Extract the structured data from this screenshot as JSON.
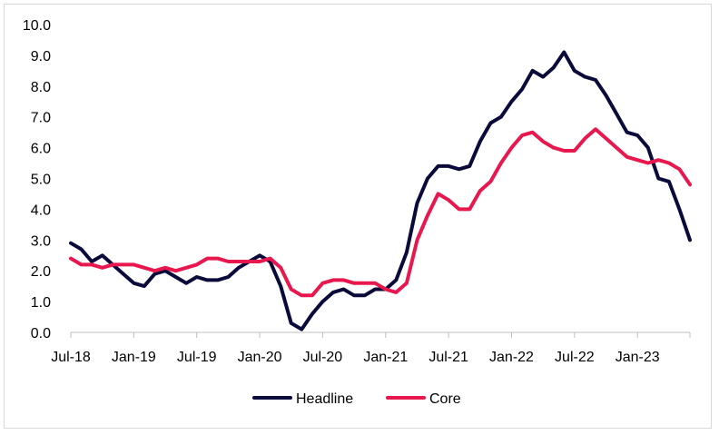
{
  "chart_data": {
    "type": "line",
    "title": "",
    "xlabel": "",
    "ylabel": "",
    "ylim": [
      0,
      10
    ],
    "yticks": [
      "0.0",
      "1.0",
      "2.0",
      "3.0",
      "4.0",
      "5.0",
      "6.0",
      "7.0",
      "8.0",
      "9.0",
      "10.0"
    ],
    "xtick_labels": [
      "Jul-18",
      "Jan-19",
      "Jul-19",
      "Jan-20",
      "Jul-20",
      "Jan-21",
      "Jul-21",
      "Jan-22",
      "Jul-22",
      "Jan-23"
    ],
    "x": [
      "Jul-18",
      "Aug-18",
      "Sep-18",
      "Oct-18",
      "Nov-18",
      "Dec-18",
      "Jan-19",
      "Feb-19",
      "Mar-19",
      "Apr-19",
      "May-19",
      "Jun-19",
      "Jul-19",
      "Aug-19",
      "Sep-19",
      "Oct-19",
      "Nov-19",
      "Dec-19",
      "Jan-20",
      "Feb-20",
      "Mar-20",
      "Apr-20",
      "May-20",
      "Jun-20",
      "Jul-20",
      "Aug-20",
      "Sep-20",
      "Oct-20",
      "Nov-20",
      "Dec-20",
      "Jan-21",
      "Feb-21",
      "Mar-21",
      "Apr-21",
      "May-21",
      "Jun-21",
      "Jul-21",
      "Aug-21",
      "Sep-21",
      "Oct-21",
      "Nov-21",
      "Dec-21",
      "Jan-22",
      "Feb-22",
      "Mar-22",
      "Apr-22",
      "May-22",
      "Jun-22",
      "Jul-22",
      "Aug-22",
      "Sep-22",
      "Oct-22",
      "Nov-22",
      "Dec-22",
      "Jan-23",
      "Feb-23",
      "Mar-23",
      "Apr-23",
      "May-23",
      "Jun-23"
    ],
    "series": [
      {
        "name": "Headline",
        "color": "#0b0b3b",
        "values": [
          2.9,
          2.7,
          2.3,
          2.5,
          2.2,
          1.9,
          1.6,
          1.5,
          1.9,
          2.0,
          1.8,
          1.6,
          1.8,
          1.7,
          1.7,
          1.8,
          2.1,
          2.3,
          2.5,
          2.3,
          1.5,
          0.3,
          0.1,
          0.6,
          1.0,
          1.3,
          1.4,
          1.2,
          1.2,
          1.4,
          1.4,
          1.7,
          2.6,
          4.2,
          5.0,
          5.4,
          5.4,
          5.3,
          5.4,
          6.2,
          6.8,
          7.0,
          7.5,
          7.9,
          8.5,
          8.3,
          8.6,
          9.1,
          8.5,
          8.3,
          8.2,
          7.7,
          7.1,
          6.5,
          6.4,
          6.0,
          5.0,
          4.9,
          4.0,
          3.0
        ]
      },
      {
        "name": "Core",
        "color": "#e8184f",
        "values": [
          2.4,
          2.2,
          2.2,
          2.1,
          2.2,
          2.2,
          2.2,
          2.1,
          2.0,
          2.1,
          2.0,
          2.1,
          2.2,
          2.4,
          2.4,
          2.3,
          2.3,
          2.3,
          2.3,
          2.4,
          2.1,
          1.4,
          1.2,
          1.2,
          1.6,
          1.7,
          1.7,
          1.6,
          1.6,
          1.6,
          1.4,
          1.3,
          1.6,
          3.0,
          3.8,
          4.5,
          4.3,
          4.0,
          4.0,
          4.6,
          4.9,
          5.5,
          6.0,
          6.4,
          6.5,
          6.2,
          6.0,
          5.9,
          5.9,
          6.3,
          6.6,
          6.3,
          6.0,
          5.7,
          5.6,
          5.5,
          5.6,
          5.5,
          5.3,
          4.8
        ]
      }
    ],
    "legend": {
      "position": "bottom"
    },
    "grid": false
  }
}
